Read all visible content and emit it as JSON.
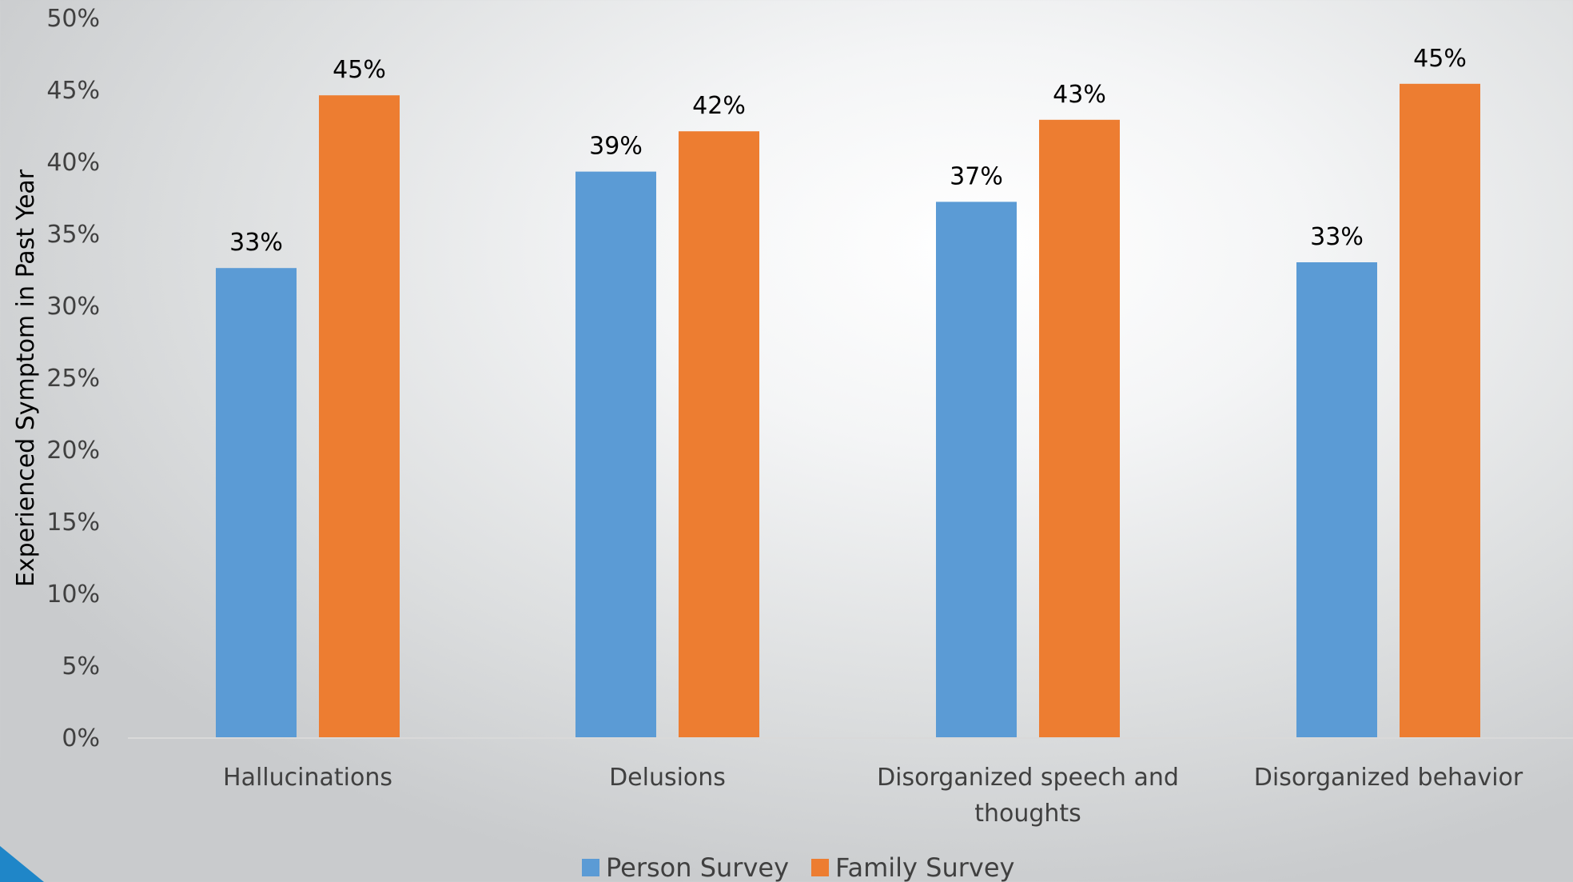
{
  "colors": {
    "person": "#5b9bd5",
    "family": "#ed7d31",
    "accent_corner": "#1f86c8"
  },
  "chart_data": {
    "type": "bar",
    "categories": [
      [
        "Hallucinations"
      ],
      [
        "Delusions"
      ],
      [
        "Disorganized speech and",
        "thoughts"
      ],
      [
        "Disorganized behavior"
      ]
    ],
    "series": [
      {
        "name": "Person Survey",
        "values": [
          32.6,
          39.3,
          37.2,
          33.0
        ],
        "labels": [
          "33%",
          "39%",
          "37%",
          "33%"
        ]
      },
      {
        "name": "Family Survey",
        "values": [
          44.6,
          42.1,
          42.9,
          45.4
        ],
        "labels": [
          "45%",
          "42%",
          "43%",
          "45%"
        ]
      }
    ],
    "ylabel": "Experienced Symptom in Past Year",
    "ylim": [
      0,
      50
    ],
    "yticks": [
      0,
      5,
      10,
      15,
      20,
      25,
      30,
      35,
      40,
      45,
      50
    ],
    "ytick_labels": [
      "0%",
      "5%",
      "10%",
      "15%",
      "20%",
      "25%",
      "30%",
      "35%",
      "40%",
      "45%",
      "50%"
    ],
    "grid": false,
    "legend": "bottom-center"
  }
}
